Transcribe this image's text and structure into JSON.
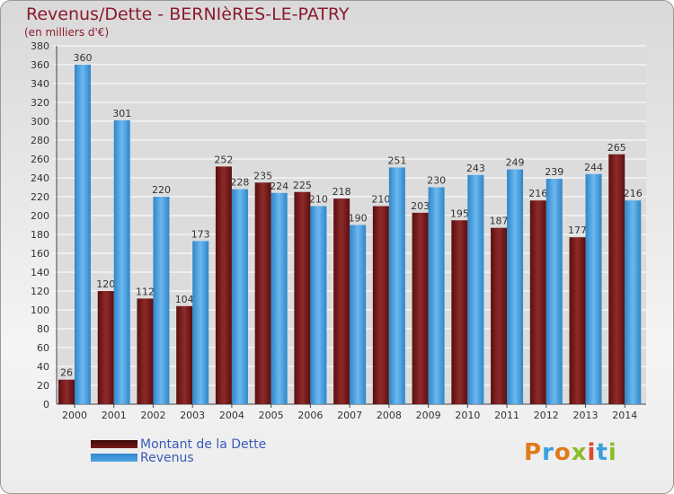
{
  "title": "Revenus/Dette - BERNIèRES-LE-PATRY",
  "subtitle": "(en milliers d'€)",
  "logo": [
    "P",
    "r",
    "o",
    "x",
    "i",
    "t",
    "i"
  ],
  "logo_colors": [
    "#e07b1a",
    "#3aa0dd",
    "#e07b1a",
    "#8bbd2a",
    "#d94b2b",
    "#3aa0dd",
    "#8bbd2a"
  ],
  "chart_data": {
    "type": "bar",
    "categories": [
      "2000",
      "2001",
      "2002",
      "2003",
      "2004",
      "2005",
      "2006",
      "2007",
      "2008",
      "2009",
      "2010",
      "2011",
      "2012",
      "2013",
      "2014"
    ],
    "series": [
      {
        "name": "Montant de la Dette",
        "color": "#7b1a1a",
        "values": [
          26,
          120,
          112,
          104,
          252,
          235,
          225,
          218,
          210,
          203,
          195,
          187,
          216,
          177,
          265
        ]
      },
      {
        "name": "Revenus",
        "color": "#4fa6e6",
        "values": [
          360,
          301,
          220,
          173,
          228,
          224,
          210,
          190,
          251,
          230,
          243,
          249,
          239,
          244,
          216
        ]
      }
    ],
    "ylim": [
      0,
      380
    ],
    "ytick_step": 20,
    "grid": true,
    "legend_position": "bottom-left"
  }
}
